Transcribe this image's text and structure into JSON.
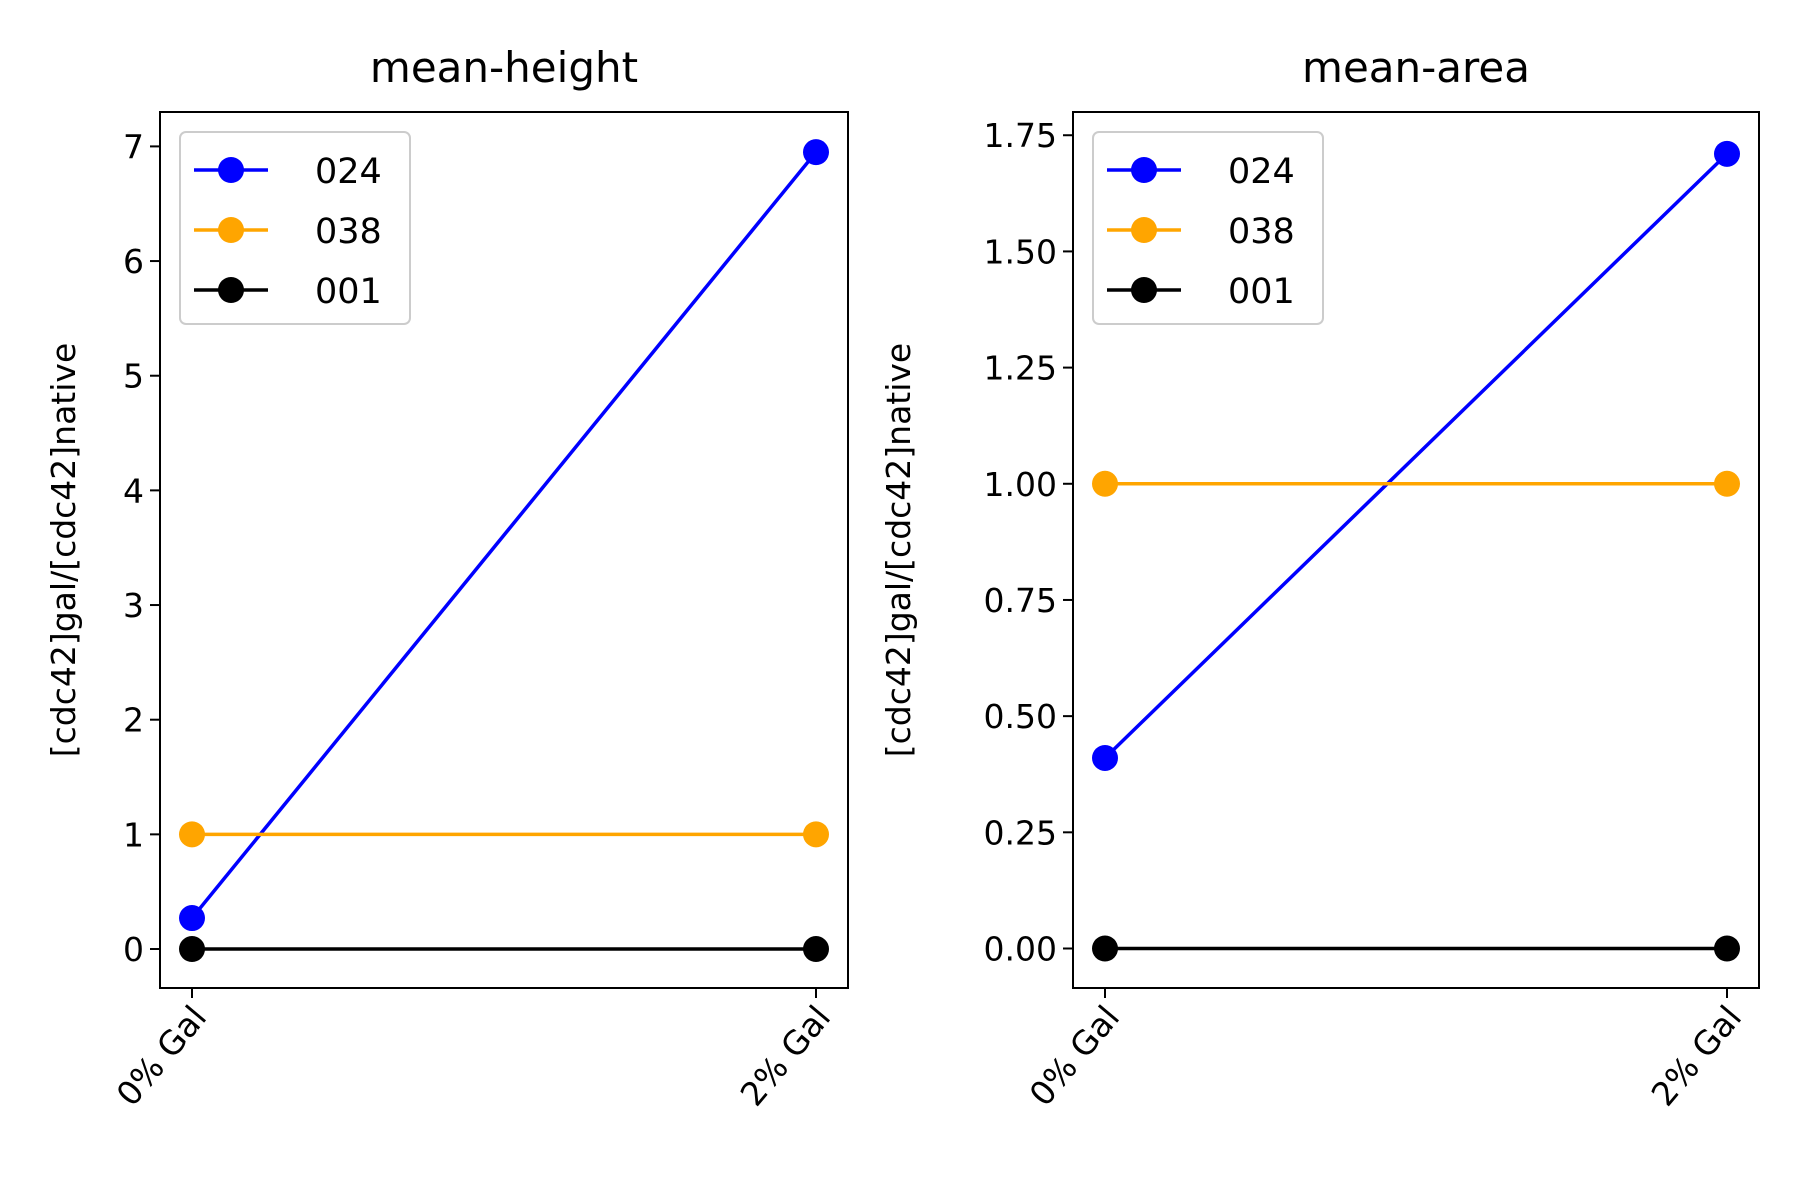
{
  "chart_data": [
    {
      "type": "line",
      "title": "mean-height",
      "xlabel": "",
      "ylabel": "[cdc42]gal/[cdc42]native",
      "categories": [
        "0% Gal",
        "2% Gal"
      ],
      "ylim": [
        -0.34,
        7.3
      ],
      "yticks": [
        0,
        1,
        2,
        3,
        4,
        5,
        6,
        7
      ],
      "ytick_labels": [
        "0",
        "1",
        "2",
        "3",
        "4",
        "5",
        "6",
        "7"
      ],
      "legend_position": "top-left",
      "grid": false,
      "series": [
        {
          "name": "024",
          "color": "#0000ff",
          "values": [
            0.27,
            6.95
          ]
        },
        {
          "name": "038",
          "color": "#ffa500",
          "values": [
            1.0,
            1.0
          ]
        },
        {
          "name": "001",
          "color": "#000000",
          "values": [
            0.0,
            0.0
          ]
        }
      ]
    },
    {
      "type": "line",
      "title": "mean-area",
      "xlabel": "",
      "ylabel": "[cdc42]gal/[cdc42]native",
      "categories": [
        "0% Gal",
        "2% Gal"
      ],
      "ylim": [
        -0.085,
        1.8
      ],
      "yticks": [
        0,
        0.25,
        0.5,
        0.75,
        1.0,
        1.25,
        1.5,
        1.75
      ],
      "ytick_labels": [
        "0.00",
        "0.25",
        "0.50",
        "0.75",
        "1.00",
        "1.25",
        "1.50",
        "1.75"
      ],
      "legend_position": "top-left",
      "grid": false,
      "series": [
        {
          "name": "024",
          "color": "#0000ff",
          "values": [
            0.41,
            1.71
          ]
        },
        {
          "name": "038",
          "color": "#ffa500",
          "values": [
            1.0,
            1.0
          ]
        },
        {
          "name": "001",
          "color": "#000000",
          "values": [
            0.0,
            0.0
          ]
        }
      ]
    }
  ]
}
